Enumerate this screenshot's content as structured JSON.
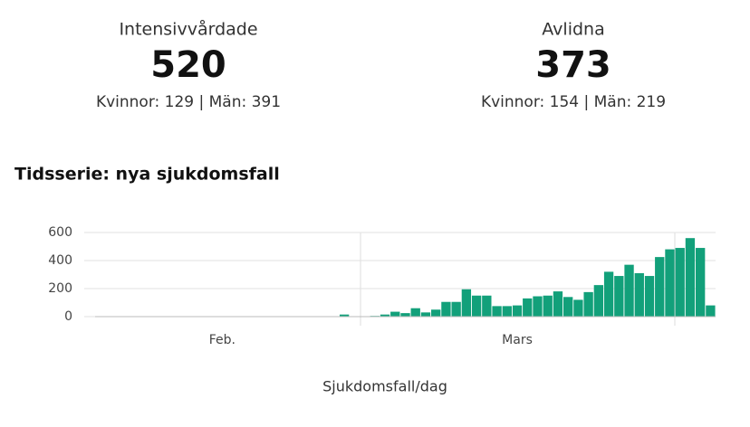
{
  "stats": [
    {
      "label": "Intensivvårdade",
      "value": 520,
      "detail": "Kvinnor: 129 | Män: 391"
    },
    {
      "label": "Avlidna",
      "value": 373,
      "detail": "Kvinnor: 154 | Män: 219"
    }
  ],
  "chart_data": {
    "type": "bar",
    "title": "Tidsserie: nya sjukdomsfall",
    "x_label": "Sjukdomsfall/dag",
    "color": "#12a07a",
    "categories": [
      null,
      null,
      null,
      null,
      null,
      null,
      null,
      null,
      null,
      null,
      null,
      null,
      "Feb.",
      null,
      null,
      null,
      null,
      null,
      null,
      null,
      null,
      null,
      null,
      null,
      null,
      null,
      null,
      null,
      null,
      null,
      null,
      null,
      null,
      null,
      null,
      null,
      null,
      null,
      null,
      null,
      null,
      "Mars",
      null,
      null,
      null,
      null,
      null,
      null,
      null,
      null,
      null,
      null,
      null,
      null,
      null,
      null,
      null,
      null,
      null,
      null,
      null
    ],
    "values": [
      1,
      1,
      1,
      1,
      1,
      1,
      1,
      1,
      1,
      1,
      1,
      1,
      1,
      1,
      1,
      1,
      1,
      1,
      1,
      1,
      1,
      1,
      1,
      1,
      15,
      2,
      3,
      5,
      15,
      35,
      25,
      60,
      30,
      50,
      105,
      105,
      195,
      150,
      150,
      75,
      75,
      80,
      130,
      145,
      150,
      180,
      140,
      120,
      175,
      225,
      320,
      290,
      370,
      310,
      290,
      425,
      480,
      490,
      560,
      490,
      80
    ],
    "ylim": [
      0,
      600
    ],
    "yticks": [
      0,
      200,
      400,
      600
    ],
    "grid": true
  }
}
